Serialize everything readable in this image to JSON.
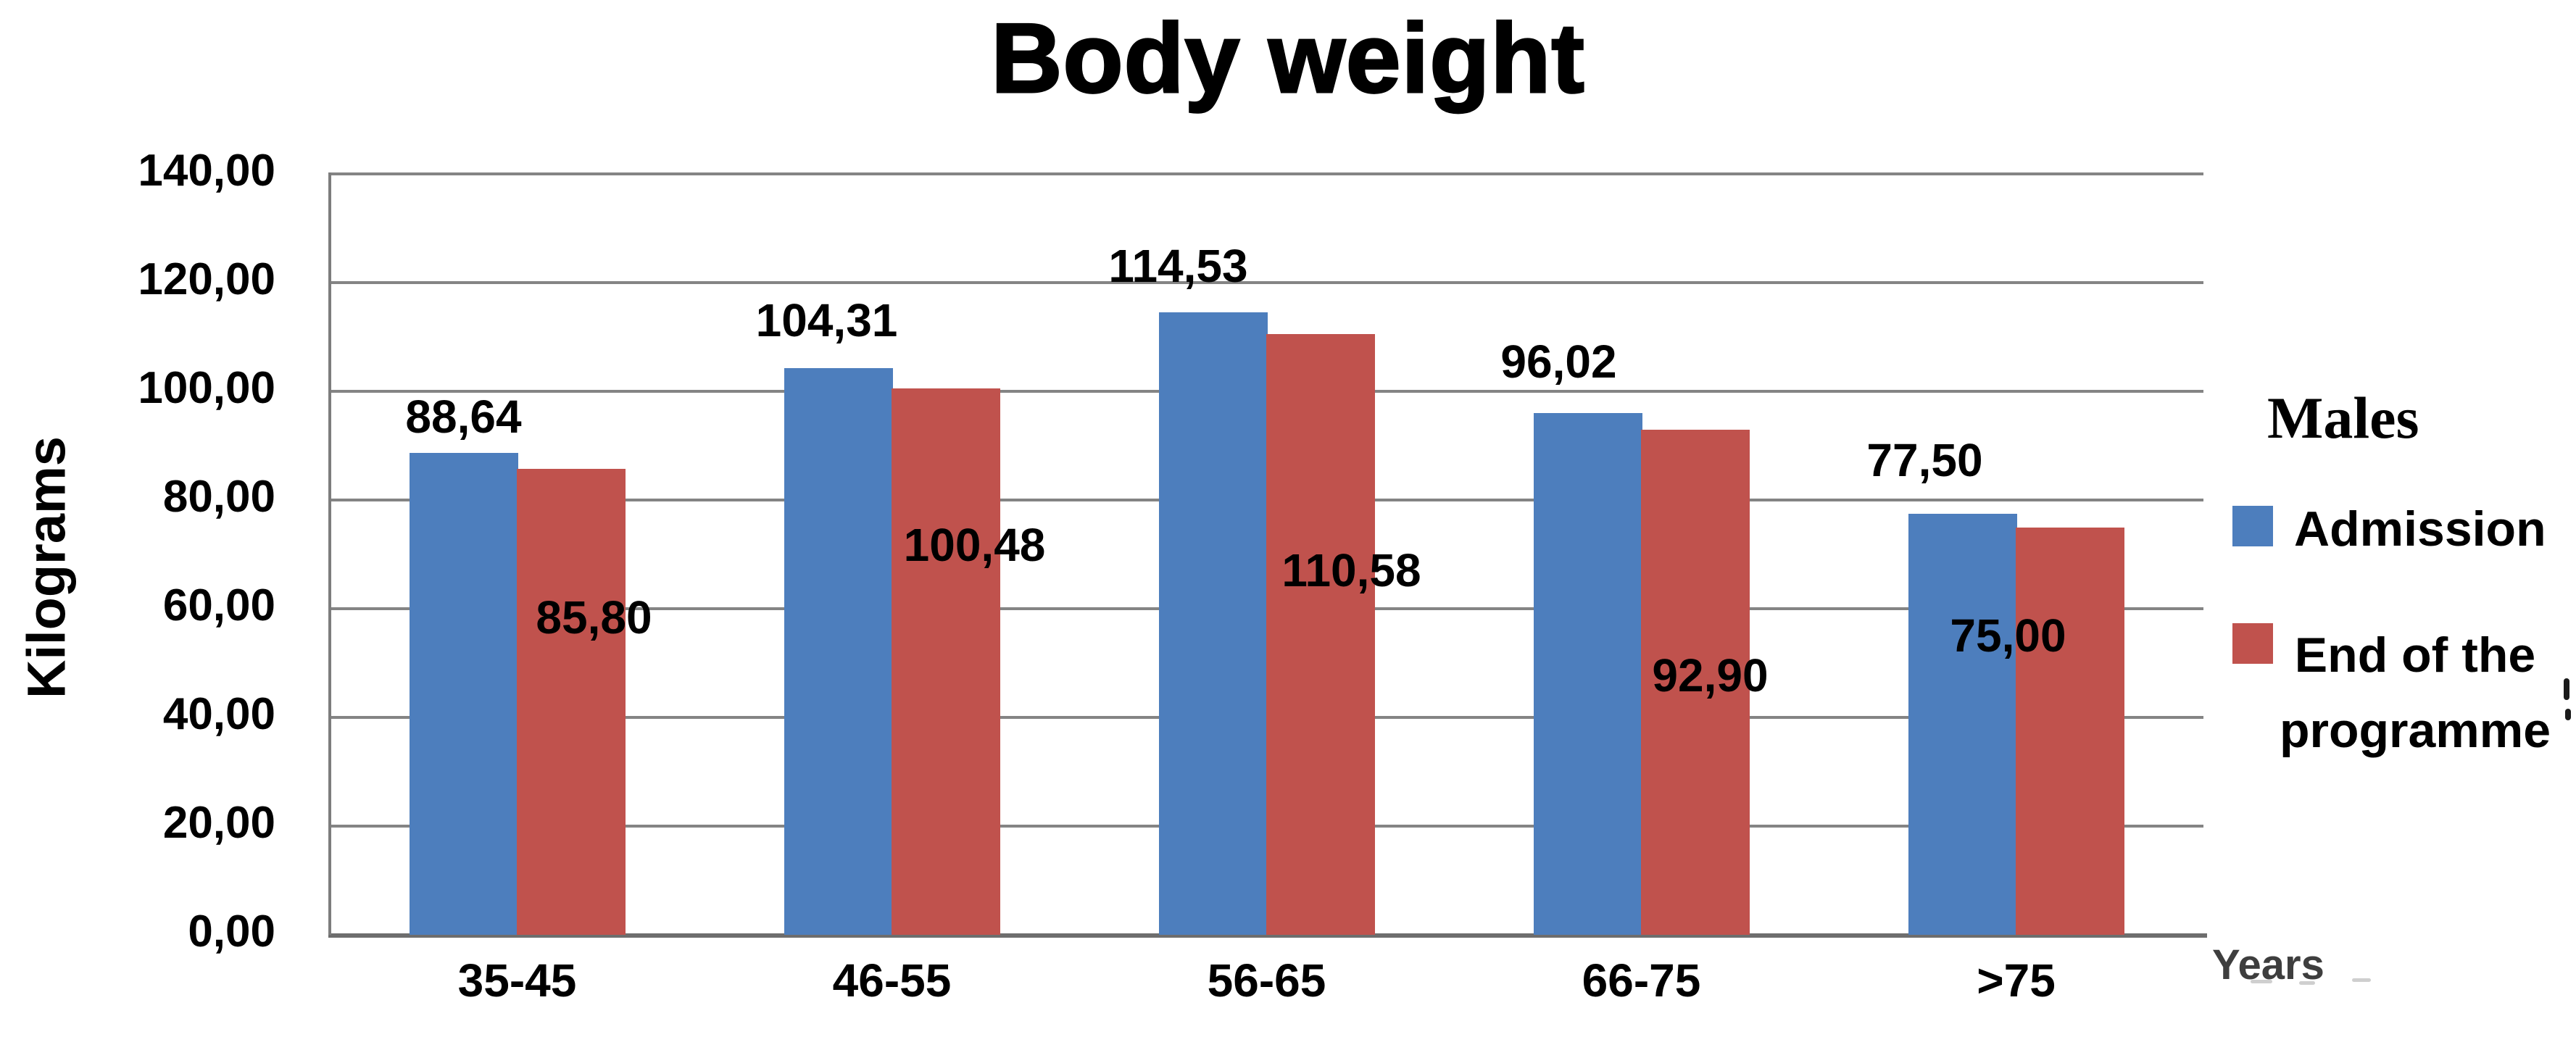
{
  "chart_data": {
    "type": "bar",
    "title": "Body weight",
    "ylabel": "Kilograms",
    "xlabel": "Years",
    "legend_title": "Males",
    "legend_position": "right",
    "grid": true,
    "ylim": [
      0,
      140
    ],
    "ytick_step": 20,
    "ytick_labels": [
      "0,00",
      "20,00",
      "40,00",
      "60,00",
      "80,00",
      "100,00",
      "120,00",
      "140,00"
    ],
    "categories": [
      "35-45",
      "46-55",
      "56-65",
      "66-75",
      ">75"
    ],
    "series": [
      {
        "name": "Admission",
        "color": "#4d7ebd",
        "values": [
          88.64,
          104.31,
          114.53,
          96.02,
          77.5
        ],
        "data_labels": [
          "88,64",
          "104,31",
          "114,53",
          "96,02",
          "77,50"
        ]
      },
      {
        "name": "End of the programme",
        "color": "#c0524d",
        "values": [
          85.8,
          100.48,
          110.58,
          92.9,
          75.0
        ],
        "data_labels": [
          "85,80",
          "100,48",
          "110,58",
          "92,90",
          "75,00"
        ]
      }
    ],
    "colors": {
      "gridline": "#848484",
      "axis_line": "#6e6e6e",
      "label_text": "#000000",
      "xlabel_text": "#3e3e3e"
    }
  }
}
